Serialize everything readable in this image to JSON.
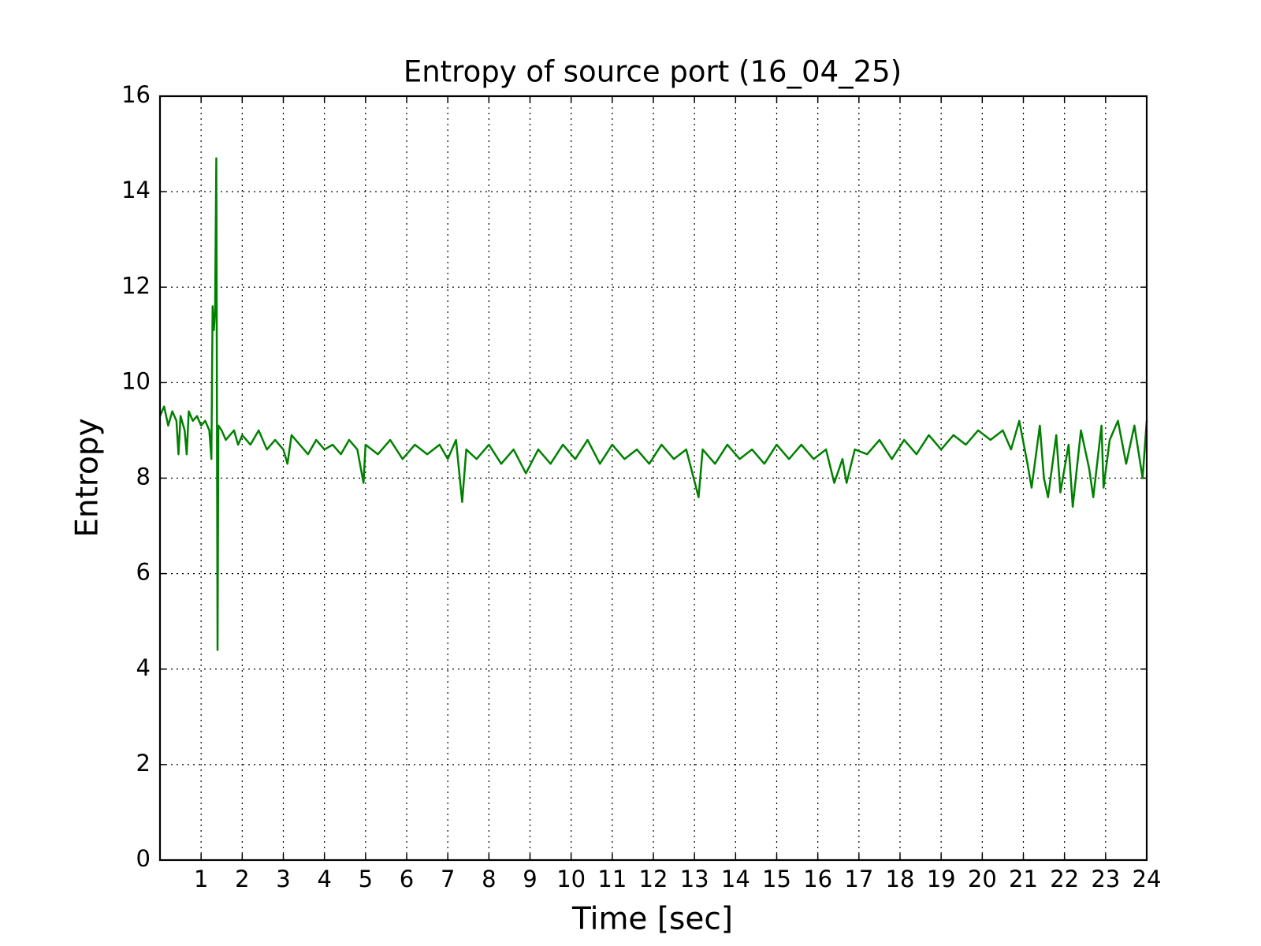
{
  "chart_data": {
    "type": "line",
    "title": "Entropy of source port (16_04_25)",
    "x_label": "Time [sec]",
    "y_label": "Entropy",
    "xlim": [
      0,
      24
    ],
    "ylim": [
      0,
      16
    ],
    "xticks": [
      1,
      2,
      3,
      4,
      5,
      6,
      7,
      8,
      9,
      10,
      11,
      12,
      13,
      14,
      15,
      16,
      17,
      18,
      19,
      20,
      21,
      22,
      23,
      24
    ],
    "yticks": [
      0,
      2,
      4,
      6,
      8,
      10,
      12,
      14,
      16
    ],
    "grid": true,
    "series": [
      {
        "name": "Entropy",
        "color": "#008000",
        "x": [
          0,
          0.1,
          0.2,
          0.3,
          0.4,
          0.45,
          0.5,
          0.6,
          0.65,
          0.7,
          0.8,
          0.9,
          1.0,
          1.1,
          1.2,
          1.25,
          1.28,
          1.31,
          1.34,
          1.37,
          1.4,
          1.42,
          1.5,
          1.6,
          1.8,
          1.9,
          2.0,
          2.2,
          2.4,
          2.6,
          2.8,
          3.0,
          3.1,
          3.2,
          3.4,
          3.6,
          3.8,
          4.0,
          4.2,
          4.4,
          4.6,
          4.8,
          4.95,
          5.0,
          5.3,
          5.6,
          5.9,
          6.2,
          6.5,
          6.8,
          7.0,
          7.2,
          7.35,
          7.45,
          7.7,
          8.0,
          8.3,
          8.6,
          8.9,
          9.2,
          9.5,
          9.8,
          10.1,
          10.4,
          10.7,
          11.0,
          11.3,
          11.6,
          11.9,
          12.2,
          12.5,
          12.8,
          13.1,
          13.2,
          13.5,
          13.8,
          14.1,
          14.4,
          14.7,
          15.0,
          15.3,
          15.6,
          15.9,
          16.2,
          16.4,
          16.6,
          16.7,
          16.9,
          17.2,
          17.5,
          17.8,
          18.1,
          18.4,
          18.7,
          19.0,
          19.3,
          19.6,
          19.9,
          20.2,
          20.5,
          20.7,
          20.9,
          21.1,
          21.2,
          21.4,
          21.5,
          21.6,
          21.8,
          21.9,
          22.1,
          22.2,
          22.4,
          22.6,
          22.7,
          22.9,
          22.95,
          23.1,
          23.3,
          23.5,
          23.7,
          23.9,
          24.0
        ],
        "values": [
          9.3,
          9.5,
          9.1,
          9.4,
          9.2,
          8.5,
          9.3,
          9.0,
          8.5,
          9.4,
          9.2,
          9.3,
          9.1,
          9.2,
          9.0,
          8.4,
          11.6,
          11.1,
          11.5,
          14.7,
          4.4,
          9.1,
          9.0,
          8.8,
          9.0,
          8.7,
          8.9,
          8.7,
          9.0,
          8.6,
          8.8,
          8.6,
          8.3,
          8.9,
          8.7,
          8.5,
          8.8,
          8.6,
          8.7,
          8.5,
          8.8,
          8.6,
          7.9,
          8.7,
          8.5,
          8.8,
          8.4,
          8.7,
          8.5,
          8.7,
          8.4,
          8.8,
          7.5,
          8.6,
          8.4,
          8.7,
          8.3,
          8.6,
          8.1,
          8.6,
          8.3,
          8.7,
          8.4,
          8.8,
          8.3,
          8.7,
          8.4,
          8.6,
          8.3,
          8.7,
          8.4,
          8.6,
          7.6,
          8.6,
          8.3,
          8.7,
          8.4,
          8.6,
          8.3,
          8.7,
          8.4,
          8.7,
          8.4,
          8.6,
          7.9,
          8.4,
          7.9,
          8.6,
          8.5,
          8.8,
          8.4,
          8.8,
          8.5,
          8.9,
          8.6,
          8.9,
          8.7,
          9.0,
          8.8,
          9.0,
          8.6,
          9.2,
          8.3,
          7.8,
          9.1,
          8.0,
          7.6,
          8.9,
          7.7,
          8.7,
          7.4,
          9.0,
          8.2,
          7.6,
          9.1,
          7.8,
          8.8,
          9.2,
          8.3,
          9.1,
          8.0,
          9.2
        ]
      }
    ]
  }
}
